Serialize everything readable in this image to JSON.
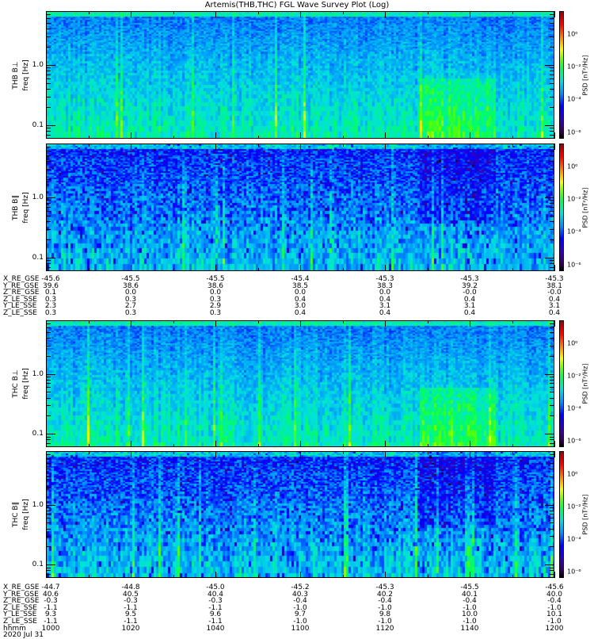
{
  "title": "Artemis(THB,THC) FGL Wave Survey Plot (Log)",
  "chart_data": [
    {
      "type": "heatmap",
      "name": "THB B⊥",
      "probe": "THB",
      "component": "B⊥",
      "ylabel": "freq [Hz]",
      "yscale": "log",
      "yticks": [
        "1.0",
        "0.1"
      ],
      "ylim_hz": [
        0.06,
        7.8
      ],
      "colorbar": {
        "label": "PSD [nT²/Hz]",
        "scale": "log",
        "ticks": [
          "10⁰",
          "10⁻²",
          "10⁻⁴",
          "10⁻⁶"
        ],
        "range_log10": [
          -6.4,
          1.4
        ]
      },
      "character": "perp"
    },
    {
      "type": "heatmap",
      "name": "THB B∥",
      "probe": "THB",
      "component": "B∥",
      "ylabel": "freq [Hz]",
      "yscale": "log",
      "yticks": [
        "1.0",
        "0.1"
      ],
      "ylim_hz": [
        0.06,
        7.8
      ],
      "colorbar": {
        "label": "PSD [nT²/Hz]",
        "scale": "log",
        "ticks": [
          "10⁰",
          "10⁻²",
          "10⁻⁴",
          "10⁻⁶"
        ],
        "range_log10": [
          -6.4,
          1.4
        ]
      },
      "character": "par"
    },
    {
      "type": "heatmap",
      "name": "THC B⊥",
      "probe": "THC",
      "component": "B⊥",
      "ylabel": "freq [Hz]",
      "yscale": "log",
      "yticks": [
        "1.0",
        "0.1"
      ],
      "ylim_hz": [
        0.06,
        7.8
      ],
      "colorbar": {
        "label": "PSD [nT²/Hz]",
        "scale": "log",
        "ticks": [
          "10⁰",
          "10⁻²",
          "10⁻⁴",
          "10⁻⁶"
        ],
        "range_log10": [
          -6.4,
          1.4
        ]
      },
      "character": "perp"
    },
    {
      "type": "heatmap",
      "name": "THC B∥",
      "probe": "THC",
      "component": "B∥",
      "ylabel": "freq [Hz]",
      "yscale": "log",
      "yticks": [
        "1.0",
        "0.1"
      ],
      "ylim_hz": [
        0.06,
        7.8
      ],
      "colorbar": {
        "label": "PSD [nT²/Hz]",
        "scale": "log",
        "ticks": [
          "10⁰",
          "10⁻²",
          "10⁻⁴",
          "10⁻⁶"
        ],
        "range_log10": [
          -6.4,
          1.4
        ]
      },
      "character": "par"
    }
  ],
  "ephemeris": [
    {
      "rows": [
        {
          "label": "X_RE_GSE",
          "values": [
            "-45.6",
            "-45.5",
            "-45.5",
            "-45.4",
            "-45.3",
            "-45.3",
            "-45.3"
          ]
        },
        {
          "label": "Y_RE_GSE",
          "values": [
            "39.6",
            "38.6",
            "38.6",
            "38.5",
            "38.3",
            "39.2",
            "38.1"
          ]
        },
        {
          "label": "Z_RE_GSE",
          "values": [
            "0.1",
            "0.0",
            "0.0",
            "0.0",
            "0.0",
            "-0.0",
            "-0.0"
          ]
        },
        {
          "label": "Z_LE_SSE",
          "values": [
            "0.3",
            "0.3",
            "0.3",
            "0.4",
            "0.4",
            "0.4",
            "0.4"
          ]
        },
        {
          "label": "Y_LE_SSE",
          "values": [
            "2.3",
            "2.7",
            "2.9",
            "3.0",
            "3.1",
            "3.1",
            "3.1"
          ]
        },
        {
          "label": "Z_LE_SSE",
          "values": [
            "0.3",
            "0.3",
            "0.3",
            "0.4",
            "0.4",
            "0.4",
            "0.4"
          ]
        }
      ]
    },
    {
      "rows": [
        {
          "label": "X_RE_GSE",
          "values": [
            "-44.7",
            "-44.8",
            "-45.0",
            "-45.2",
            "-45.3",
            "-45.5",
            "-45.6"
          ]
        },
        {
          "label": "Y_RE_GSE",
          "values": [
            "40.6",
            "40.5",
            "40.4",
            "40.3",
            "40.2",
            "40.1",
            "40.0"
          ]
        },
        {
          "label": "Z_RE_GSE",
          "values": [
            "-0.3",
            "-0.3",
            "-0.3",
            "-0.4",
            "-0.4",
            "-0.4",
            "-0.4"
          ]
        },
        {
          "label": "Z_LE_SSE",
          "values": [
            "-1.1",
            "-1.1",
            "-1.1",
            "-1.0",
            "-1.0",
            "-1.0",
            "-1.0"
          ]
        },
        {
          "label": "Y_LE_SSE",
          "values": [
            "9.3",
            "9.5",
            "9.6",
            "9.7",
            "9.8",
            "10.0",
            "10.1"
          ]
        },
        {
          "label": "Z_LE_SSE",
          "values": [
            "-1.1",
            "-1.1",
            "-1.1",
            "-1.0",
            "-1.0",
            "-1.0",
            "-1.0"
          ]
        },
        {
          "label": "hhmm",
          "values": [
            "1000",
            "1020",
            "1040",
            "1100",
            "1120",
            "1140",
            "1200"
          ]
        },
        {
          "label": "2020 Jul 31",
          "values": []
        }
      ]
    }
  ]
}
